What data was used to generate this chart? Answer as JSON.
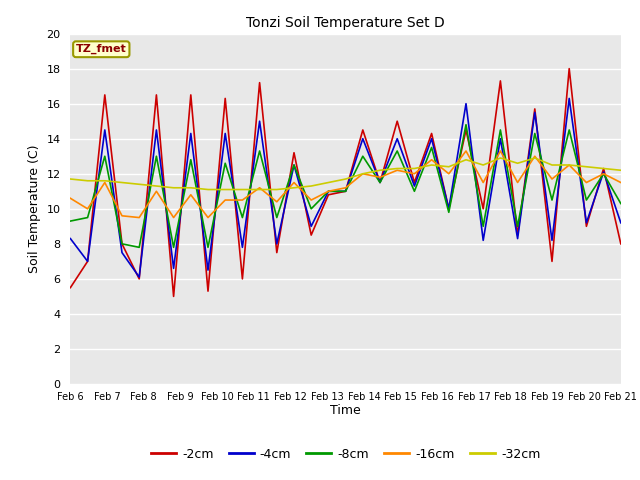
{
  "title": "Tonzi Soil Temperature Set D",
  "xlabel": "Time",
  "ylabel": "Soil Temperature (C)",
  "ylim": [
    0,
    20
  ],
  "yticks": [
    0,
    2,
    4,
    6,
    8,
    10,
    12,
    14,
    16,
    18,
    20
  ],
  "x_labels": [
    "Feb 6",
    "Feb 7",
    "Feb 8",
    "Feb 9",
    "Feb 10",
    "Feb 11",
    "Feb 12",
    "Feb 13",
    "Feb 14",
    "Feb 15",
    "Feb 16",
    "Feb 17",
    "Feb 18",
    "Feb 19",
    "Feb 20",
    "Feb 21"
  ],
  "legend_label": "TZ_fmet",
  "series_labels": [
    "-2cm",
    "-4cm",
    "-8cm",
    "-16cm",
    "-32cm"
  ],
  "series_colors": [
    "#cc0000",
    "#0000cc",
    "#009900",
    "#ff8800",
    "#cccc00"
  ],
  "background_color": "#ffffff",
  "plot_bg_color": "#e8e8e8",
  "t2cm": [
    5.5,
    7.0,
    16.5,
    8.0,
    6.0,
    16.5,
    5.0,
    16.5,
    5.3,
    16.3,
    6.0,
    17.2,
    7.5,
    13.2,
    8.5,
    10.8,
    11.0,
    14.5,
    11.5,
    15.0,
    11.5,
    14.3,
    10.0,
    14.5,
    10.0,
    17.3,
    8.5,
    15.7,
    7.0,
    18.0,
    9.0,
    12.3,
    8.0
  ],
  "t4cm": [
    8.3,
    7.0,
    14.5,
    7.5,
    6.1,
    14.5,
    6.6,
    14.3,
    6.5,
    14.3,
    7.8,
    15.0,
    8.0,
    12.5,
    9.0,
    11.0,
    11.0,
    14.0,
    11.5,
    14.0,
    11.3,
    14.0,
    10.0,
    16.0,
    8.2,
    14.0,
    8.3,
    15.5,
    8.2,
    16.3,
    9.2,
    12.1,
    9.2
  ],
  "t8cm": [
    9.3,
    9.5,
    13.0,
    8.0,
    7.8,
    13.0,
    7.8,
    12.8,
    7.8,
    12.6,
    9.5,
    13.3,
    9.5,
    12.5,
    10.0,
    11.0,
    11.0,
    13.0,
    11.5,
    13.3,
    11.0,
    13.5,
    9.8,
    14.8,
    9.0,
    14.5,
    9.0,
    14.3,
    10.5,
    14.5,
    10.5,
    12.0,
    10.3
  ],
  "t16cm": [
    10.6,
    10.0,
    11.5,
    9.6,
    9.5,
    11.0,
    9.5,
    10.8,
    9.5,
    10.5,
    10.5,
    11.2,
    10.4,
    11.5,
    10.5,
    11.0,
    11.2,
    12.0,
    11.8,
    12.2,
    12.0,
    12.8,
    12.0,
    13.3,
    11.5,
    13.3,
    11.5,
    13.0,
    11.7,
    12.5,
    11.5,
    12.0,
    11.5
  ],
  "t32cm": [
    11.7,
    11.6,
    11.6,
    11.5,
    11.4,
    11.3,
    11.2,
    11.2,
    11.1,
    11.1,
    11.1,
    11.1,
    11.1,
    11.2,
    11.3,
    11.5,
    11.7,
    12.0,
    12.2,
    12.3,
    12.3,
    12.5,
    12.4,
    12.8,
    12.5,
    12.9,
    12.6,
    12.9,
    12.5,
    12.5,
    12.4,
    12.3,
    12.2
  ]
}
